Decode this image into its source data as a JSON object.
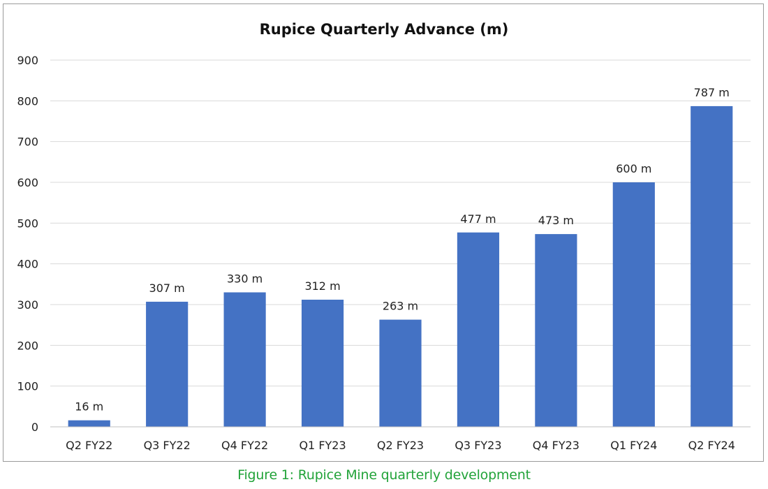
{
  "caption": "Figure 1: Rupice Mine quarterly development",
  "colors": {
    "bar": "#4472c4",
    "grid": "#d9d9d9",
    "axis": "#bfbfbf",
    "caption": "#22a339"
  },
  "chart_data": {
    "type": "bar",
    "title": "Rupice Quarterly Advance (m)",
    "xlabel": "",
    "ylabel": "",
    "categories": [
      "Q2 FY22",
      "Q3 FY22",
      "Q4 FY22",
      "Q1 FY23",
      "Q2 FY23",
      "Q3 FY23",
      "Q4 FY23",
      "Q1 FY24",
      "Q2 FY24"
    ],
    "values": [
      16,
      307,
      330,
      312,
      263,
      477,
      473,
      600,
      787
    ],
    "data_labels": [
      "16 m",
      "307 m",
      "330 m",
      "312 m",
      "263 m",
      "477 m",
      "473 m",
      "600 m",
      "787 m"
    ],
    "ylim": [
      0,
      900
    ],
    "yticks": [
      0,
      100,
      200,
      300,
      400,
      500,
      600,
      700,
      800,
      900
    ],
    "ytick_labels": [
      "0",
      "100",
      "200",
      "300",
      "400",
      "500",
      "600",
      "700",
      "800",
      "900"
    ],
    "grid": true,
    "legend": "none"
  }
}
